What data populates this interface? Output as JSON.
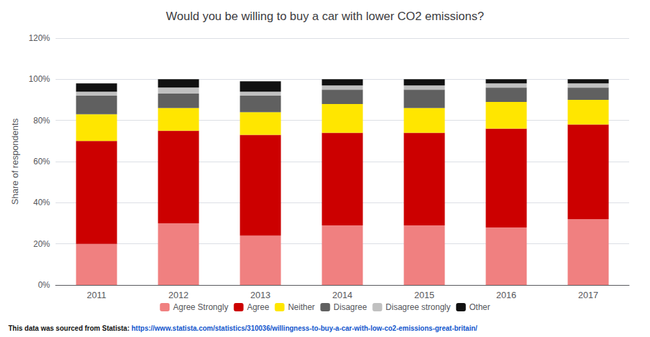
{
  "chart_data": {
    "type": "bar",
    "title": "Would you be willing to buy a car with lower CO2 emissions?",
    "ylabel": "Share of respondents",
    "categories": [
      "2011",
      "2012",
      "2013",
      "2014",
      "2015",
      "2016",
      "2017"
    ],
    "series": [
      {
        "name": "Agree Strongly",
        "color": "#F08080",
        "values": [
          0.2,
          0.3,
          0.24,
          0.29,
          0.29,
          0.28,
          0.32
        ]
      },
      {
        "name": "Agree",
        "color": "#CC0000",
        "values": [
          0.5,
          0.45,
          0.49,
          0.45,
          0.45,
          0.48,
          0.46
        ]
      },
      {
        "name": "Neither",
        "color": "#FFE600",
        "values": [
          0.13,
          0.11,
          0.11,
          0.14,
          0.12,
          0.13,
          0.12
        ]
      },
      {
        "name": "Disagree",
        "color": "#606060",
        "values": [
          0.09,
          0.07,
          0.08,
          0.07,
          0.09,
          0.07,
          0.06
        ]
      },
      {
        "name": "Disagree strongly",
        "color": "#C0C0C0",
        "values": [
          0.02,
          0.03,
          0.02,
          0.02,
          0.02,
          0.02,
          0.02
        ]
      },
      {
        "name": "Other",
        "color": "#111111",
        "values": [
          0.04,
          0.04,
          0.05,
          0.03,
          0.03,
          0.02,
          0.02
        ]
      }
    ],
    "stacked": true,
    "ylim": [
      0,
      1.2
    ],
    "yticks": [
      {
        "value": 0,
        "label": "0%"
      },
      {
        "value": 0.2,
        "label": "20%"
      },
      {
        "value": 0.4,
        "label": "40%"
      },
      {
        "value": 0.6,
        "label": "60%"
      },
      {
        "value": 0.8,
        "label": "80%"
      },
      {
        "value": 1.0,
        "label": "100%"
      },
      {
        "value": 1.2,
        "label": "120%"
      }
    ],
    "grid": true,
    "legend": "bottom",
    "annotations": [
      "This data was sourced from Statista: ",
      "https://www.statista.com/statistics/310036/willingness-to-buy-a-car-with-low-co2-emissions-great-britain/"
    ]
  }
}
